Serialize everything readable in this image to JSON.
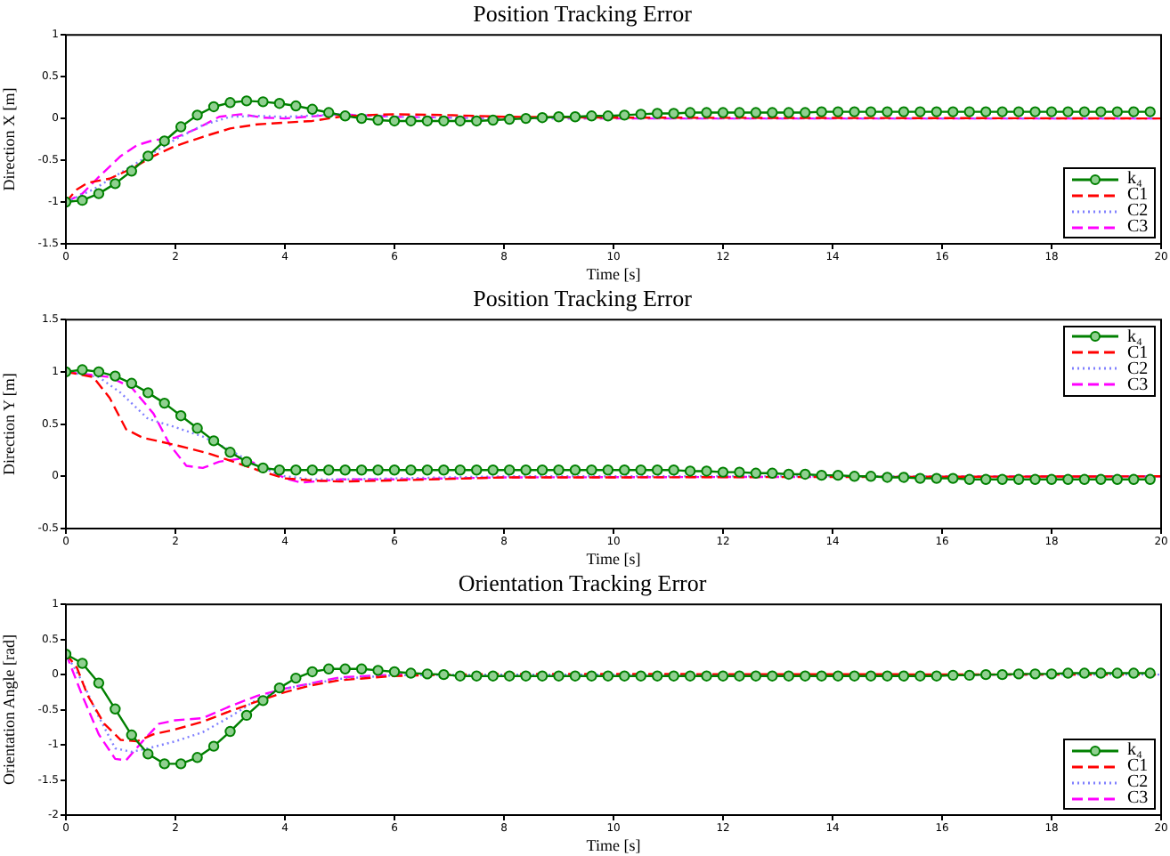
{
  "chart_data": [
    {
      "type": "line",
      "title": "Position Tracking Error",
      "xlabel": "Time [s]",
      "ylabel": "Direction X [m]",
      "xlim": [
        0,
        20
      ],
      "xticks": [
        0,
        2,
        4,
        6,
        8,
        10,
        12,
        14,
        16,
        18,
        20
      ],
      "ylim": [
        -1.5,
        1
      ],
      "yticks": [
        -1.5,
        -1,
        -0.5,
        0,
        0.5,
        1
      ],
      "grid": false,
      "legend": "bottom right",
      "x": [
        0,
        0.3,
        0.6,
        0.9,
        1.2,
        1.5,
        1.8,
        2.1,
        2.4,
        2.7,
        3,
        3.3,
        3.6,
        3.9,
        4.2,
        4.5,
        4.8,
        5.1,
        5.4,
        5.7,
        6,
        6.3,
        6.6,
        6.9,
        7.2,
        7.5,
        7.8,
        8.1,
        8.4,
        8.7,
        9,
        9.3,
        9.6,
        9.9,
        10.2,
        10.5,
        10.8,
        11.1,
        11.4,
        11.7,
        12,
        12.3,
        12.6,
        12.9,
        13.2,
        13.5,
        13.8,
        14.1,
        14.4,
        14.7,
        15,
        15.3,
        15.6,
        15.9,
        16.2,
        16.5,
        16.8,
        17.1,
        17.4,
        17.7,
        18,
        18.3,
        18.6,
        18.9,
        19.2,
        19.5,
        19.8
      ],
      "series": [
        {
          "name": "k₄",
          "color": "#008000",
          "marker": "circle",
          "line_style": "solid",
          "values": [
            -1.0,
            -0.98,
            -0.9,
            -0.78,
            -0.63,
            -0.45,
            -0.27,
            -0.1,
            0.04,
            0.14,
            0.19,
            0.21,
            0.2,
            0.18,
            0.15,
            0.11,
            0.07,
            0.03,
            0.0,
            -0.02,
            -0.03,
            -0.03,
            -0.03,
            -0.03,
            -0.03,
            -0.03,
            -0.02,
            -0.01,
            0.0,
            0.01,
            0.02,
            0.02,
            0.03,
            0.03,
            0.04,
            0.05,
            0.06,
            0.06,
            0.07,
            0.07,
            0.07,
            0.07,
            0.07,
            0.07,
            0.07,
            0.07,
            0.08,
            0.08,
            0.08,
            0.08,
            0.08,
            0.08,
            0.08,
            0.08,
            0.08,
            0.08,
            0.08,
            0.08,
            0.08,
            0.08,
            0.08,
            0.08,
            0.08,
            0.08,
            0.08,
            0.08,
            0.08
          ]
        },
        {
          "name": "C1",
          "color": "#ff0000",
          "marker": "none",
          "line_style": "dashed",
          "x": [
            0,
            0.2,
            0.4,
            0.8,
            1.2,
            1.6,
            2,
            2.5,
            3,
            3.5,
            4,
            4.5,
            5,
            5.5,
            6,
            7,
            8,
            10,
            20
          ],
          "values": [
            -1,
            -0.85,
            -0.77,
            -0.72,
            -0.6,
            -0.45,
            -0.33,
            -0.22,
            -0.12,
            -0.07,
            -0.05,
            -0.03,
            0.02,
            0.04,
            0.05,
            0.04,
            0.02,
            0.01,
            0.0
          ]
        },
        {
          "name": "C2",
          "color": "#8080ff",
          "marker": "none",
          "line_style": "dotted",
          "x": [
            0,
            0.5,
            1,
            1.5,
            2,
            2.5,
            3,
            3.5,
            4,
            5,
            6,
            8,
            20
          ],
          "values": [
            -1,
            -0.85,
            -0.65,
            -0.45,
            -0.25,
            -0.08,
            0.02,
            0.03,
            0.02,
            0.05,
            0.02,
            0.0,
            0.0
          ]
        },
        {
          "name": "C3",
          "color": "#ff00ff",
          "marker": "none",
          "line_style": "dashed",
          "x": [
            0,
            0.3,
            0.6,
            1,
            1.3,
            1.6,
            2,
            2.4,
            2.8,
            3.2,
            3.6,
            4,
            5,
            6,
            8,
            20
          ],
          "values": [
            -1,
            -0.9,
            -0.7,
            -0.45,
            -0.32,
            -0.26,
            -0.23,
            -0.12,
            0.02,
            0.05,
            0.01,
            0.0,
            0.05,
            0.02,
            0.0,
            0.0
          ]
        }
      ]
    },
    {
      "type": "line",
      "title": "Position Tracking Error",
      "xlabel": "Time [s]",
      "ylabel": "Direction Y [m]",
      "xlim": [
        0,
        20
      ],
      "xticks": [
        0,
        2,
        4,
        6,
        8,
        10,
        12,
        14,
        16,
        18,
        20
      ],
      "ylim": [
        -0.5,
        1.5
      ],
      "yticks": [
        -0.5,
        0,
        0.5,
        1,
        1.5
      ],
      "grid": false,
      "legend": "top right",
      "x": [
        0,
        0.3,
        0.6,
        0.9,
        1.2,
        1.5,
        1.8,
        2.1,
        2.4,
        2.7,
        3,
        3.3,
        3.6,
        3.9,
        4.2,
        4.5,
        4.8,
        5.1,
        5.4,
        5.7,
        6,
        6.3,
        6.6,
        6.9,
        7.2,
        7.5,
        7.8,
        8.1,
        8.4,
        8.7,
        9,
        9.3,
        9.6,
        9.9,
        10.2,
        10.5,
        10.8,
        11.1,
        11.4,
        11.7,
        12,
        12.3,
        12.6,
        12.9,
        13.2,
        13.5,
        13.8,
        14.1,
        14.4,
        14.7,
        15,
        15.3,
        15.6,
        15.9,
        16.2,
        16.5,
        16.8,
        17.1,
        17.4,
        17.7,
        18,
        18.3,
        18.6,
        18.9,
        19.2,
        19.5,
        19.8
      ],
      "series": [
        {
          "name": "k₄",
          "color": "#008000",
          "marker": "circle",
          "line_style": "solid",
          "values": [
            1.0,
            1.02,
            1.0,
            0.96,
            0.89,
            0.8,
            0.7,
            0.58,
            0.46,
            0.34,
            0.23,
            0.14,
            0.08,
            0.06,
            0.06,
            0.06,
            0.06,
            0.06,
            0.06,
            0.06,
            0.06,
            0.06,
            0.06,
            0.06,
            0.06,
            0.06,
            0.06,
            0.06,
            0.06,
            0.06,
            0.06,
            0.06,
            0.06,
            0.06,
            0.06,
            0.06,
            0.06,
            0.06,
            0.05,
            0.05,
            0.04,
            0.04,
            0.03,
            0.03,
            0.02,
            0.02,
            0.01,
            0.01,
            0.0,
            0.0,
            -0.01,
            -0.01,
            -0.02,
            -0.02,
            -0.02,
            -0.03,
            -0.03,
            -0.03,
            -0.03,
            -0.03,
            -0.03,
            -0.03,
            -0.03,
            -0.03,
            -0.03,
            -0.03,
            -0.03
          ]
        },
        {
          "name": "C1",
          "color": "#ff0000",
          "marker": "none",
          "line_style": "dashed",
          "x": [
            0,
            0.5,
            0.8,
            1.1,
            1.4,
            2,
            2.6,
            3,
            3.5,
            4,
            4.5,
            5,
            6,
            8,
            10,
            20
          ],
          "values": [
            1,
            0.95,
            0.75,
            0.45,
            0.37,
            0.3,
            0.22,
            0.15,
            0.06,
            -0.02,
            -0.04,
            -0.05,
            -0.04,
            -0.01,
            -0.01,
            0.0
          ]
        },
        {
          "name": "C2",
          "color": "#8080ff",
          "marker": "none",
          "line_style": "dotted",
          "x": [
            0,
            0.6,
            1,
            1.5,
            2,
            2.5,
            3,
            3.5,
            4,
            4.5,
            5,
            6,
            8,
            20
          ],
          "values": [
            1,
            0.95,
            0.8,
            0.55,
            0.47,
            0.38,
            0.25,
            0.1,
            0.0,
            -0.03,
            -0.03,
            -0.02,
            0.0,
            0.0
          ]
        },
        {
          "name": "C3",
          "color": "#ff00ff",
          "marker": "none",
          "line_style": "dashed",
          "x": [
            0,
            0.8,
            1.2,
            1.6,
            1.9,
            2.2,
            2.5,
            2.8,
            3.2,
            3.6,
            4,
            4.3,
            5,
            6,
            8,
            20
          ],
          "values": [
            1,
            0.95,
            0.85,
            0.6,
            0.3,
            0.1,
            0.08,
            0.14,
            0.17,
            0.1,
            -0.02,
            -0.06,
            -0.03,
            -0.03,
            -0.01,
            0.0
          ]
        }
      ]
    },
    {
      "type": "line",
      "title": "Orientation Tracking Error",
      "xlabel": "Time [s]",
      "ylabel": "Orientation Angle [rad]",
      "xlim": [
        0,
        20
      ],
      "xticks": [
        0,
        2,
        4,
        6,
        8,
        10,
        12,
        14,
        16,
        18,
        20
      ],
      "ylim": [
        -2,
        1
      ],
      "yticks": [
        -2,
        -1.5,
        -1,
        -0.5,
        0,
        0.5,
        1
      ],
      "grid": false,
      "legend": "bottom right",
      "x": [
        0,
        0.3,
        0.6,
        0.9,
        1.2,
        1.5,
        1.8,
        2.1,
        2.4,
        2.7,
        3,
        3.3,
        3.6,
        3.9,
        4.2,
        4.5,
        4.8,
        5.1,
        5.4,
        5.7,
        6,
        6.3,
        6.6,
        6.9,
        7.2,
        7.5,
        7.8,
        8.1,
        8.4,
        8.7,
        9,
        9.3,
        9.6,
        9.9,
        10.2,
        10.5,
        10.8,
        11.1,
        11.4,
        11.7,
        12,
        12.3,
        12.6,
        12.9,
        13.2,
        13.5,
        13.8,
        14.1,
        14.4,
        14.7,
        15,
        15.3,
        15.6,
        15.9,
        16.2,
        16.5,
        16.8,
        17.1,
        17.4,
        17.7,
        18,
        18.3,
        18.6,
        18.9,
        19.2,
        19.5,
        19.8
      ],
      "series": [
        {
          "name": "k₄",
          "color": "#008000",
          "marker": "circle",
          "line_style": "solid",
          "values": [
            0.29,
            0.16,
            -0.12,
            -0.49,
            -0.86,
            -1.13,
            -1.27,
            -1.27,
            -1.18,
            -1.02,
            -0.81,
            -0.58,
            -0.37,
            -0.19,
            -0.05,
            0.04,
            0.08,
            0.08,
            0.08,
            0.06,
            0.04,
            0.02,
            0.01,
            0.0,
            -0.02,
            -0.02,
            -0.02,
            -0.02,
            -0.02,
            -0.02,
            -0.02,
            -0.02,
            -0.02,
            -0.02,
            -0.02,
            -0.02,
            -0.02,
            -0.02,
            -0.02,
            -0.02,
            -0.02,
            -0.02,
            -0.02,
            -0.02,
            -0.02,
            -0.02,
            -0.02,
            -0.02,
            -0.02,
            -0.02,
            -0.02,
            -0.02,
            -0.02,
            -0.02,
            -0.01,
            -0.01,
            0.0,
            0.0,
            0.01,
            0.01,
            0.01,
            0.02,
            0.02,
            0.02,
            0.02,
            0.02,
            0.02
          ]
        },
        {
          "name": "C1",
          "color": "#ff0000",
          "marker": "none",
          "line_style": "dashed",
          "x": [
            0,
            0.2,
            0.4,
            0.7,
            1,
            1.3,
            1.6,
            2,
            2.5,
            3,
            3.5,
            4,
            4.5,
            5,
            6,
            7,
            8,
            20
          ],
          "values": [
            0.3,
            0.1,
            -0.3,
            -0.7,
            -0.93,
            -0.95,
            -0.85,
            -0.78,
            -0.67,
            -0.52,
            -0.38,
            -0.25,
            -0.15,
            -0.08,
            -0.02,
            0.0,
            0.01,
            0.0
          ]
        },
        {
          "name": "C2",
          "color": "#8080ff",
          "marker": "none",
          "line_style": "dotted",
          "x": [
            0,
            0.3,
            0.6,
            0.9,
            1.2,
            1.5,
            2,
            2.5,
            3,
            3.5,
            4,
            5,
            6,
            8,
            20
          ],
          "values": [
            0.3,
            -0.1,
            -0.6,
            -1.05,
            -1.1,
            -1.05,
            -0.95,
            -0.82,
            -0.6,
            -0.35,
            -0.2,
            -0.06,
            -0.01,
            0.0,
            0.0
          ]
        },
        {
          "name": "C3",
          "color": "#ff00ff",
          "marker": "none",
          "line_style": "dashed",
          "x": [
            0,
            0.3,
            0.6,
            0.9,
            1.1,
            1.4,
            1.7,
            2,
            2.5,
            3,
            3.5,
            4,
            5,
            6,
            20
          ],
          "values": [
            0.3,
            -0.3,
            -0.85,
            -1.2,
            -1.22,
            -0.95,
            -0.7,
            -0.65,
            -0.62,
            -0.45,
            -0.3,
            -0.2,
            -0.04,
            0.0,
            0.0
          ]
        }
      ]
    }
  ]
}
